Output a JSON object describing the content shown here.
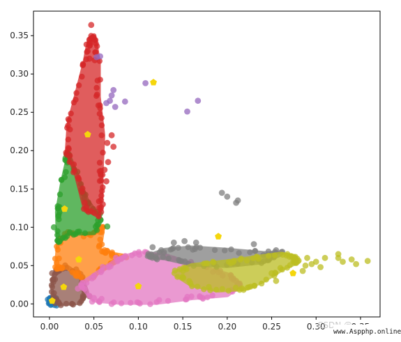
{
  "chart_data": {
    "type": "scatter",
    "xlim": [
      -0.018,
      0.372
    ],
    "ylim": [
      -0.017,
      0.382
    ],
    "x_ticks": [
      "0.00",
      "0.05",
      "0.10",
      "0.15",
      "0.20",
      "0.25",
      "0.30",
      "0.35"
    ],
    "x_tick_values": [
      0.0,
      0.05,
      0.1,
      0.15,
      0.2,
      0.25,
      0.3,
      0.35
    ],
    "y_ticks": [
      "0.00",
      "0.05",
      "0.10",
      "0.15",
      "0.20",
      "0.25",
      "0.30",
      "0.35"
    ],
    "y_tick_values": [
      0.0,
      0.05,
      0.1,
      0.15,
      0.2,
      0.25,
      0.3,
      0.35
    ],
    "grid": false,
    "legend": false,
    "point_alpha": 0.75,
    "centroid_color": "#f5d60c",
    "clusters": [
      {
        "color": "#1f77b4",
        "centroid": [
          0.003,
          0.004
        ],
        "hull": [
          [
            0.0,
            0.0
          ],
          [
            0.006,
            0.0
          ],
          [
            0.006,
            0.006
          ],
          [
            0.0,
            0.006
          ]
        ],
        "outliers": [
          [
            0.001,
            0.002
          ],
          [
            0.004,
            0.003
          ]
        ]
      },
      {
        "color": "#8c564b",
        "centroid": [
          0.016,
          0.022
        ],
        "hull": [
          [
            0.004,
            0.03
          ],
          [
            0.008,
            0.045
          ],
          [
            0.02,
            0.048
          ],
          [
            0.036,
            0.035
          ],
          [
            0.042,
            0.015
          ],
          [
            0.035,
            0.002
          ],
          [
            0.012,
            0.0
          ],
          [
            0.004,
            0.008
          ]
        ],
        "outliers": [
          [
            0.003,
            0.04
          ],
          [
            0.045,
            0.01
          ],
          [
            0.03,
            0.045
          ]
        ]
      },
      {
        "color": "#ff7f0e",
        "centroid": [
          0.033,
          0.058
        ],
        "hull": [
          [
            0.008,
            0.045
          ],
          [
            0.01,
            0.08
          ],
          [
            0.02,
            0.092
          ],
          [
            0.045,
            0.09
          ],
          [
            0.06,
            0.1
          ],
          [
            0.056,
            0.07
          ],
          [
            0.07,
            0.065
          ],
          [
            0.085,
            0.062
          ],
          [
            0.06,
            0.045
          ],
          [
            0.04,
            0.03
          ],
          [
            0.02,
            0.048
          ]
        ],
        "outliers": [
          [
            0.06,
            0.1
          ],
          [
            0.062,
            0.07
          ],
          [
            0.075,
            0.062
          ]
        ]
      },
      {
        "color": "#2ca02c",
        "centroid": [
          0.017,
          0.124
        ],
        "hull": [
          [
            0.01,
            0.08
          ],
          [
            0.009,
            0.12
          ],
          [
            0.015,
            0.16
          ],
          [
            0.02,
            0.185
          ],
          [
            0.02,
            0.198
          ],
          [
            0.03,
            0.17
          ],
          [
            0.042,
            0.135
          ],
          [
            0.058,
            0.11
          ],
          [
            0.05,
            0.093
          ],
          [
            0.02,
            0.092
          ]
        ],
        "outliers": [
          [
            0.065,
            0.101
          ],
          [
            0.005,
            0.1
          ],
          [
            0.018,
            0.19
          ]
        ]
      },
      {
        "color": "#d62728",
        "centroid": [
          0.043,
          0.221
        ],
        "hull": [
          [
            0.02,
            0.198
          ],
          [
            0.022,
            0.235
          ],
          [
            0.03,
            0.27
          ],
          [
            0.04,
            0.315
          ],
          [
            0.045,
            0.345
          ],
          [
            0.05,
            0.35
          ],
          [
            0.055,
            0.315
          ],
          [
            0.055,
            0.27
          ],
          [
            0.06,
            0.22
          ],
          [
            0.058,
            0.17
          ],
          [
            0.058,
            0.14
          ],
          [
            0.055,
            0.115
          ],
          [
            0.04,
            0.125
          ],
          [
            0.03,
            0.17
          ]
        ],
        "outliers": [
          [
            0.047,
            0.364
          ],
          [
            0.046,
            0.34
          ],
          [
            0.043,
            0.33
          ],
          [
            0.045,
            0.32
          ],
          [
            0.051,
            0.318
          ],
          [
            0.07,
            0.22
          ],
          [
            0.072,
            0.205
          ],
          [
            0.065,
            0.21
          ],
          [
            0.066,
            0.185
          ],
          [
            0.062,
            0.175
          ],
          [
            0.064,
            0.16
          ],
          [
            0.06,
            0.13
          ],
          [
            0.058,
            0.12
          ]
        ]
      },
      {
        "color": "#9467bd",
        "centroid": null,
        "hull": [],
        "outliers": [
          [
            0.057,
            0.323
          ],
          [
            0.053,
            0.322
          ],
          [
            0.072,
            0.279
          ],
          [
            0.07,
            0.272
          ],
          [
            0.068,
            0.265
          ],
          [
            0.085,
            0.264
          ],
          [
            0.064,
            0.262
          ],
          [
            0.074,
            0.257
          ],
          [
            0.108,
            0.288
          ],
          [
            0.155,
            0.251
          ],
          [
            0.167,
            0.265
          ]
        ]
      },
      {
        "color": "#e377c2",
        "centroid": [
          0.1,
          0.023
        ],
        "hull": [
          [
            0.035,
            0.025
          ],
          [
            0.06,
            0.045
          ],
          [
            0.08,
            0.06
          ],
          [
            0.1,
            0.066
          ],
          [
            0.13,
            0.063
          ],
          [
            0.16,
            0.052
          ],
          [
            0.2,
            0.038
          ],
          [
            0.215,
            0.025
          ],
          [
            0.2,
            0.012
          ],
          [
            0.16,
            0.008
          ],
          [
            0.12,
            0.002
          ],
          [
            0.08,
            0.002
          ],
          [
            0.05,
            0.005
          ]
        ],
        "outliers": [
          [
            0.048,
            0.003
          ],
          [
            0.07,
            0.0
          ],
          [
            0.21,
            0.03
          ],
          [
            0.205,
            0.018
          ],
          [
            0.032,
            0.02
          ]
        ]
      },
      {
        "color": "#7f7f7f",
        "centroid": null,
        "hull": [
          [
            0.11,
            0.062
          ],
          [
            0.13,
            0.07
          ],
          [
            0.16,
            0.073
          ],
          [
            0.2,
            0.07
          ],
          [
            0.24,
            0.066
          ],
          [
            0.26,
            0.065
          ],
          [
            0.24,
            0.055
          ],
          [
            0.2,
            0.05
          ],
          [
            0.16,
            0.052
          ],
          [
            0.13,
            0.06
          ]
        ],
        "outliers": [
          [
            0.116,
            0.074
          ],
          [
            0.14,
            0.08
          ],
          [
            0.152,
            0.082
          ],
          [
            0.165,
            0.08
          ],
          [
            0.194,
            0.145
          ],
          [
            0.2,
            0.14
          ],
          [
            0.21,
            0.132
          ],
          [
            0.212,
            0.135
          ],
          [
            0.23,
            0.078
          ],
          [
            0.255,
            0.07
          ],
          [
            0.262,
            0.068
          ]
        ]
      },
      {
        "color": "#bcbd22",
        "centroid": [
          0.274,
          0.04
        ],
        "hull": [
          [
            0.14,
            0.04
          ],
          [
            0.16,
            0.05
          ],
          [
            0.2,
            0.055
          ],
          [
            0.23,
            0.06
          ],
          [
            0.26,
            0.065
          ],
          [
            0.275,
            0.062
          ],
          [
            0.28,
            0.055
          ],
          [
            0.265,
            0.048
          ],
          [
            0.24,
            0.03
          ],
          [
            0.22,
            0.02
          ],
          [
            0.19,
            0.018
          ],
          [
            0.16,
            0.025
          ]
        ],
        "outliers": [
          [
            0.288,
            0.05
          ],
          [
            0.295,
            0.052
          ],
          [
            0.3,
            0.055
          ],
          [
            0.31,
            0.06
          ],
          [
            0.325,
            0.06
          ],
          [
            0.33,
            0.055
          ],
          [
            0.34,
            0.058
          ],
          [
            0.345,
            0.052
          ],
          [
            0.358,
            0.056
          ],
          [
            0.29,
            0.06
          ],
          [
            0.305,
            0.048
          ],
          [
            0.285,
            0.043
          ],
          [
            0.255,
            0.03
          ],
          [
            0.25,
            0.04
          ],
          [
            0.325,
            0.065
          ]
        ]
      }
    ],
    "extra_centroids": [
      [
        0.117,
        0.289
      ],
      [
        0.19,
        0.088
      ]
    ]
  },
  "watermark": {
    "ghost_text": "CSDN @",
    "text": "www.Aspphp.online"
  }
}
